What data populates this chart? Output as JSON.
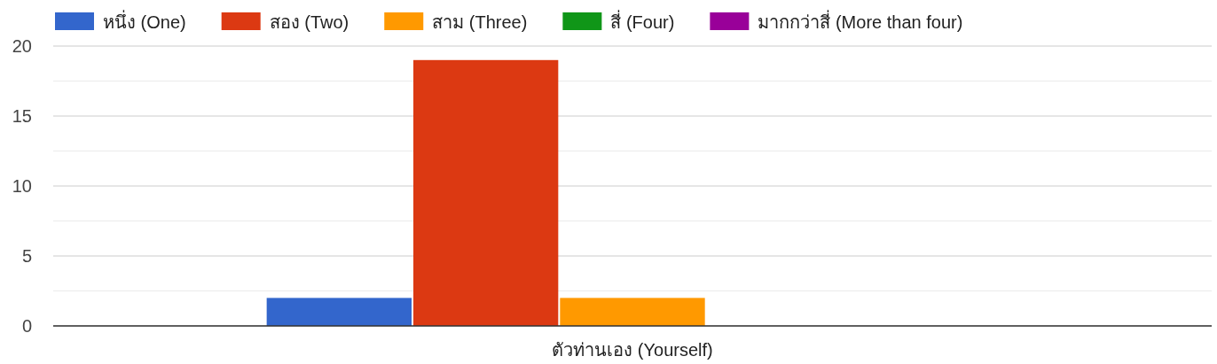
{
  "chart_data": {
    "type": "bar",
    "categories": [
      "ตัวท่านเอง (Yourself)"
    ],
    "series": [
      {
        "name": "หนึ่ง (One)",
        "color": "#3366cc",
        "values": [
          2
        ]
      },
      {
        "name": "สอง (Two)",
        "color": "#dc3912",
        "values": [
          19
        ]
      },
      {
        "name": "สาม (Three)",
        "color": "#ff9900",
        "values": [
          2
        ]
      },
      {
        "name": "สี่ (Four)",
        "color": "#109618",
        "values": [
          0
        ]
      },
      {
        "name": "มากกว่าสี่ (More than four)",
        "color": "#990099",
        "values": [
          0
        ]
      }
    ],
    "ylim": [
      0,
      20
    ],
    "yticks": [
      0,
      {
        "value": 2.5,
        "label": null
      },
      5,
      {
        "value": 7.5,
        "label": null
      },
      10,
      {
        "value": 12.5,
        "label": null
      },
      15,
      {
        "value": 17.5,
        "label": null
      },
      20
    ],
    "grid": "y",
    "legend": "top"
  }
}
